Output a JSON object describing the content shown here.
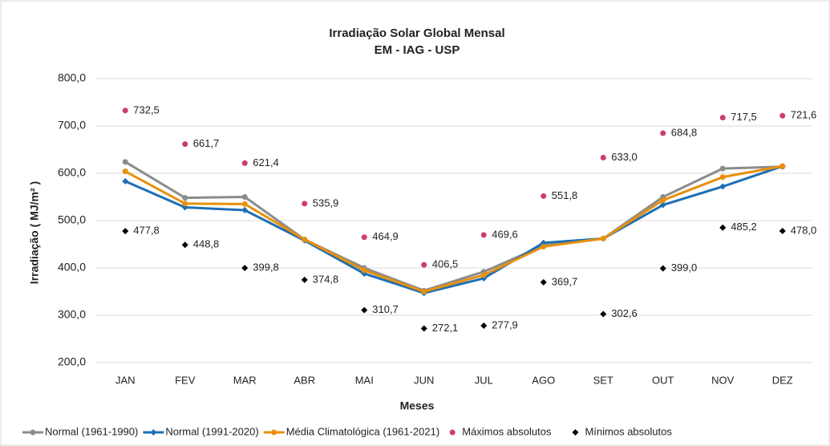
{
  "chart_data": {
    "type": "line",
    "title": "Irradiação Solar Global Mensal",
    "subtitle": "EM - IAG - USP",
    "x_label": "Meses",
    "y_label": "Irradiação ( MJ/m² )",
    "categories": [
      "JAN",
      "FEV",
      "MAR",
      "ABR",
      "MAI",
      "JUN",
      "JUL",
      "AGO",
      "SET",
      "OUT",
      "NOV",
      "DEZ"
    ],
    "ylim": [
      200,
      800
    ],
    "yticks": [
      {
        "value": 200,
        "label": "200,0"
      },
      {
        "value": 300,
        "label": "300,0"
      },
      {
        "value": 400,
        "label": "400,0"
      },
      {
        "value": 500,
        "label": "500,0"
      },
      {
        "value": 600,
        "label": "600,0"
      },
      {
        "value": 700,
        "label": "700,0"
      },
      {
        "value": 800,
        "label": "800,0"
      }
    ],
    "grid": true,
    "legend": "bottom",
    "series": [
      {
        "name": "Normal (1961-1990)",
        "color": "#8c8c8c",
        "marker": "circle",
        "line": true,
        "values": [
          624,
          548,
          550,
          460,
          400,
          352,
          392,
          447,
          462,
          550,
          610,
          614
        ]
      },
      {
        "name": "Normal (1991-2020)",
        "color": "#1f6fb5",
        "marker": "diamond",
        "line": true,
        "values": [
          583,
          528,
          522,
          458,
          388,
          347,
          378,
          453,
          462,
          533,
          572,
          615
        ]
      },
      {
        "name": "Média Climatológica (1961-2021)",
        "color": "#e8900c",
        "marker": "circle",
        "line": true,
        "values": [
          604,
          536,
          535,
          460,
          395,
          350,
          385,
          445,
          462,
          543,
          592,
          615
        ]
      },
      {
        "name": "Máximos absolutos",
        "color": "#cc3d6b",
        "marker": "circle",
        "line": false,
        "values": [
          732.5,
          661.7,
          621.4,
          535.9,
          464.9,
          406.5,
          469.6,
          551.8,
          633.0,
          684.8,
          717.5,
          721.6
        ],
        "value_labels": [
          "732,5",
          "661,7",
          "621,4",
          "535,9",
          "464,9",
          "406,5",
          "469,6",
          "551,8",
          "633,0",
          "684,8",
          "717,5",
          "721,6"
        ]
      },
      {
        "name": "Mínimos absolutos",
        "color": "#000000",
        "marker": "diamond",
        "line": false,
        "values": [
          477.8,
          448.8,
          399.8,
          374.8,
          310.7,
          272.1,
          277.9,
          369.7,
          302.6,
          399.0,
          485.2,
          478.0
        ],
        "value_labels": [
          "477,8",
          "448,8",
          "399,8",
          "374,8",
          "310,7",
          "272,1",
          "277,9",
          "369,7",
          "302,6",
          "399,0",
          "485,2",
          "478,0"
        ]
      }
    ]
  }
}
